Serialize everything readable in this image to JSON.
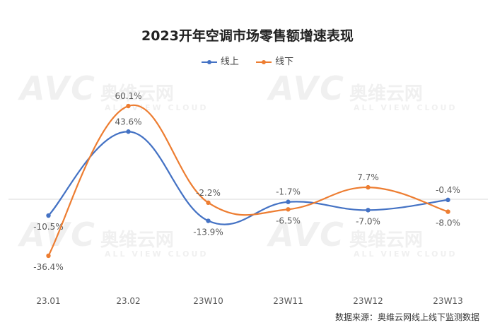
{
  "watermark": {
    "logo": "AVC",
    "cn": "奥维云网",
    "en": "ALL VIEW CLOUD"
  },
  "source_note": "数据来源：奥维云网线上线下监测数据",
  "chart_data": {
    "type": "line",
    "title": "2023开年空调市场零售额增速表现",
    "categories": [
      "23.01",
      "23.02",
      "23W10",
      "23W11",
      "23W12",
      "23W13"
    ],
    "series": [
      {
        "name": "线上",
        "color": "#4472C4",
        "values": [
          -10.5,
          43.6,
          -13.9,
          -1.7,
          -7.0,
          -0.4
        ],
        "labels": [
          "-10.5%",
          "43.6%",
          "-13.9%",
          "-1.7%",
          "-7.0%",
          "-0.4%"
        ]
      },
      {
        "name": "线下",
        "color": "#ED7D31",
        "values": [
          -36.4,
          60.1,
          -2.2,
          -6.5,
          7.7,
          -8.0
        ],
        "labels": [
          "-36.4%",
          "60.1%",
          "-2.2%",
          "-6.5%",
          "7.7%",
          "-8.0%"
        ]
      }
    ],
    "ylim": [
      -45,
      70
    ],
    "legend": "top-center",
    "grid": false
  }
}
